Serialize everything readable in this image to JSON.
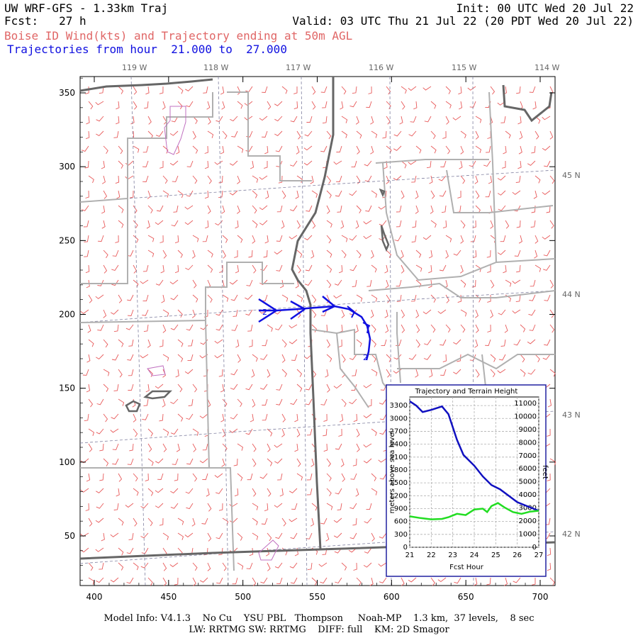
{
  "header": {
    "title_left": "UW WRF-GFS - 1.33km Traj",
    "title_right": "Init: 00 UTC Wed 20 Jul 22",
    "fcst_line": "Fcst:   27 h",
    "valid_line": "Valid: 03 UTC Thu 21 Jul 22 (20 PDT Wed 20 Jul 22)",
    "subtitle": "Boise ID Wind(kts) and Trajectory ending at 50m AGL",
    "traj_range": "Trajectories from hour  21.000 to  27.000"
  },
  "colors": {
    "wind_barb": "#e85a5a",
    "trajectory": "#1010e0",
    "terrain": "#22dd22",
    "state_border": "#666666",
    "county_border": "#b0b0b0",
    "lat_lon_grid": "#8080a0",
    "urban_area": "#c070c0"
  },
  "map": {
    "x_ticks": [
      "400",
      "450",
      "500",
      "550",
      "600",
      "650",
      "700"
    ],
    "y_ticks": [
      "50",
      "100",
      "150",
      "200",
      "250",
      "300",
      "350"
    ],
    "lon_labels": [
      "119 W",
      "118 W",
      "117 W",
      "116 W",
      "115 W",
      "114 W"
    ],
    "lat_labels": [
      "45 N",
      "44 N",
      "43 N",
      "42 N"
    ],
    "traj_markers": [
      "2",
      "2"
    ]
  },
  "inset": {
    "title": "Trajectory and Terrain Height",
    "ylabel_left": "meters above sea level",
    "ylabel_right": "feet",
    "xlabel": "Fcst Hour",
    "left_ticks": [
      "0",
      "300",
      "600",
      "900",
      "1200",
      "1500",
      "1800",
      "2100",
      "2400",
      "2700",
      "3000",
      "3300"
    ],
    "right_ticks": [
      "0",
      "1000",
      "2000",
      "3000",
      "4000",
      "5000",
      "6000",
      "7000",
      "8000",
      "9000",
      "10000",
      "11000"
    ],
    "x_ticks": [
      "21",
      "22",
      "23",
      "24",
      "25",
      "26",
      "27"
    ]
  },
  "chart_data": {
    "type": "line",
    "title": "Trajectory and Terrain Height",
    "xlabel": "Fcst Hour",
    "ylabel": "meters above sea level",
    "xlim": [
      21,
      27
    ],
    "ylim": [
      0,
      3500
    ],
    "series": [
      {
        "x": [
          21.0,
          21.3,
          21.6,
          22.0,
          22.5,
          22.8,
          23.2,
          23.5,
          24.0,
          24.4,
          24.8,
          25.2,
          25.6,
          26.0,
          26.5,
          27.0
        ],
        "y": [
          3400,
          3300,
          3150,
          3200,
          3280,
          3100,
          2500,
          2150,
          1900,
          1650,
          1450,
          1350,
          1200,
          1050,
          950,
          850
        ]
      },
      {
        "x": [
          21.0,
          21.5,
          22.0,
          22.5,
          22.8,
          23.2,
          23.6,
          24.0,
          24.4,
          24.6,
          24.8,
          25.1,
          25.4,
          25.8,
          26.2,
          26.6,
          27.0
        ],
        "y": [
          720,
          680,
          650,
          660,
          700,
          780,
          750,
          880,
          900,
          820,
          960,
          1030,
          930,
          820,
          780,
          830,
          850
        ]
      }
    ]
  },
  "footer": {
    "line1": "Model Info: V4.1.3    No Cu    YSU PBL   Thompson     Noah-MP    1.3 km,  37 levels,    8 sec",
    "line2": "LW: RRTMG SW: RRTMG    DIFF: full    KM: 2D Smagor"
  }
}
